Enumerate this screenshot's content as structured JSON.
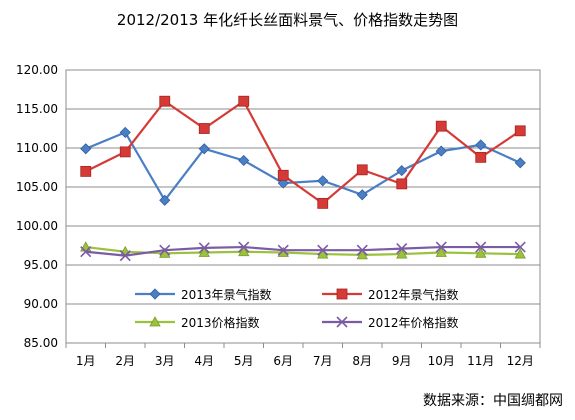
{
  "chart_data": {
    "type": "line",
    "title": "2012/2013 年化纤长丝面料景气、价格指数走势图",
    "categories": [
      "1月",
      "2月",
      "3月",
      "4月",
      "5月",
      "6月",
      "7月",
      "8月",
      "9月",
      "10月",
      "11月",
      "12月"
    ],
    "ylim": [
      85,
      120
    ],
    "yticks": [
      "85.00",
      "90.00",
      "95.00",
      "100.00",
      "105.00",
      "110.00",
      "115.00",
      "120.00"
    ],
    "grid": true,
    "legend_position": "inside-bottom",
    "series": [
      {
        "name": "2013年景气指数",
        "color": "#4a7fc6",
        "marker": "diamond",
        "values": [
          109.9,
          112.0,
          103.3,
          109.9,
          108.4,
          105.5,
          105.8,
          104.0,
          107.1,
          109.6,
          110.4,
          108.1
        ]
      },
      {
        "name": "2012年景气指数",
        "color": "#d63a36",
        "marker": "square",
        "values": [
          107.0,
          109.5,
          116.0,
          112.5,
          116.0,
          106.5,
          102.9,
          107.2,
          105.4,
          112.8,
          108.8,
          112.2
        ]
      },
      {
        "name": "2013价格指数",
        "color": "#9bc23c",
        "marker": "triangle",
        "values": [
          97.3,
          96.7,
          96.5,
          96.6,
          96.7,
          96.6,
          96.4,
          96.3,
          96.4,
          96.6,
          96.5,
          96.4
        ]
      },
      {
        "name": "2012年价格指数",
        "color": "#7b5aa6",
        "marker": "x",
        "values": [
          96.7,
          96.2,
          96.9,
          97.2,
          97.3,
          96.9,
          96.9,
          96.9,
          97.1,
          97.3,
          97.3,
          97.3
        ]
      }
    ]
  },
  "source_text": "数据来源：中国绸都网"
}
